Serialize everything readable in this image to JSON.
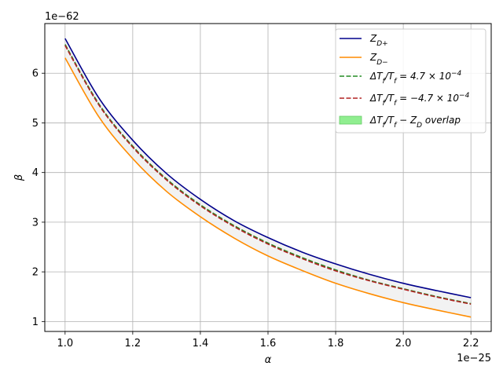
{
  "chart_data": {
    "type": "line",
    "title": "",
    "xlabel": "α",
    "ylabel": "β",
    "x_offset_label": "1e−25",
    "y_offset_label": "1e−62",
    "xlim": [
      0.94,
      2.26
    ],
    "ylim": [
      0.8,
      7.0
    ],
    "x_ticks": [
      1.0,
      1.2,
      1.4,
      1.6,
      1.8,
      2.0,
      2.2
    ],
    "x_tick_labels": [
      "1.0",
      "1.2",
      "1.4",
      "1.6",
      "1.8",
      "2.0",
      "2.2"
    ],
    "y_ticks": [
      1,
      2,
      3,
      4,
      5,
      6
    ],
    "y_tick_labels": [
      "1",
      "2",
      "3",
      "4",
      "5",
      "6"
    ],
    "grid": true,
    "legend_position": "top-right",
    "x": [
      1.0,
      1.1,
      1.2,
      1.3,
      1.4,
      1.5,
      1.6,
      1.7,
      1.8,
      1.9,
      2.0,
      2.1,
      2.2
    ],
    "series": [
      {
        "name": "Z_D+",
        "legend_main": "Z",
        "legend_sub": "D+",
        "color": "#00008b",
        "style": "solid",
        "values": [
          6.7,
          5.5,
          4.65,
          3.98,
          3.46,
          3.03,
          2.69,
          2.4,
          2.16,
          1.95,
          1.77,
          1.62,
          1.48
        ]
      },
      {
        "name": "Z_D−",
        "legend_main": "Z",
        "legend_sub": "D−",
        "color": "#ff8c00",
        "style": "solid",
        "values": [
          6.31,
          5.12,
          4.28,
          3.62,
          3.11,
          2.68,
          2.32,
          2.03,
          1.77,
          1.56,
          1.38,
          1.23,
          1.09
        ]
      },
      {
        "name": "ΔT_f/T_f = 4.7×10^−4",
        "legend_html": "ΔT<tspan baseline-shift=\"sub\" font-size=\"9\">f</tspan>/T<tspan baseline-shift=\"sub\" font-size=\"9\">f</tspan> = 4.7 × 10<tspan baseline-shift=\"super\" font-size=\"9\">−4</tspan>",
        "color": "#228b22",
        "style": "dashed",
        "values": [
          6.58,
          5.38,
          4.53,
          3.87,
          3.35,
          2.93,
          2.58,
          2.29,
          2.04,
          1.83,
          1.66,
          1.5,
          1.36
        ]
      },
      {
        "name": "ΔT_f/T_f = −4.7×10^−4",
        "legend_html": "ΔT<tspan baseline-shift=\"sub\" font-size=\"9\">f</tspan>/T<tspan baseline-shift=\"sub\" font-size=\"9\">f</tspan> = −4.7 × 10<tspan baseline-shift=\"super\" font-size=\"9\">−4</tspan>",
        "color": "#b22222",
        "style": "dashed",
        "values": [
          6.56,
          5.36,
          4.51,
          3.85,
          3.33,
          2.91,
          2.56,
          2.27,
          2.02,
          1.82,
          1.65,
          1.49,
          1.35
        ]
      }
    ],
    "overlap_band": {
      "name": "ΔT_f/T_f − Z_D overlap",
      "legend_html": "ΔT<tspan baseline-shift=\"sub\" font-size=\"9\">f</tspan>/T<tspan baseline-shift=\"sub\" font-size=\"9\">f</tspan> − Z<tspan baseline-shift=\"sub\" font-size=\"9\">D</tspan> overlap",
      "legend_color": "#90ee90",
      "fill_color": "#eeeeee",
      "lower_series": 1,
      "upper_series": 0
    }
  }
}
